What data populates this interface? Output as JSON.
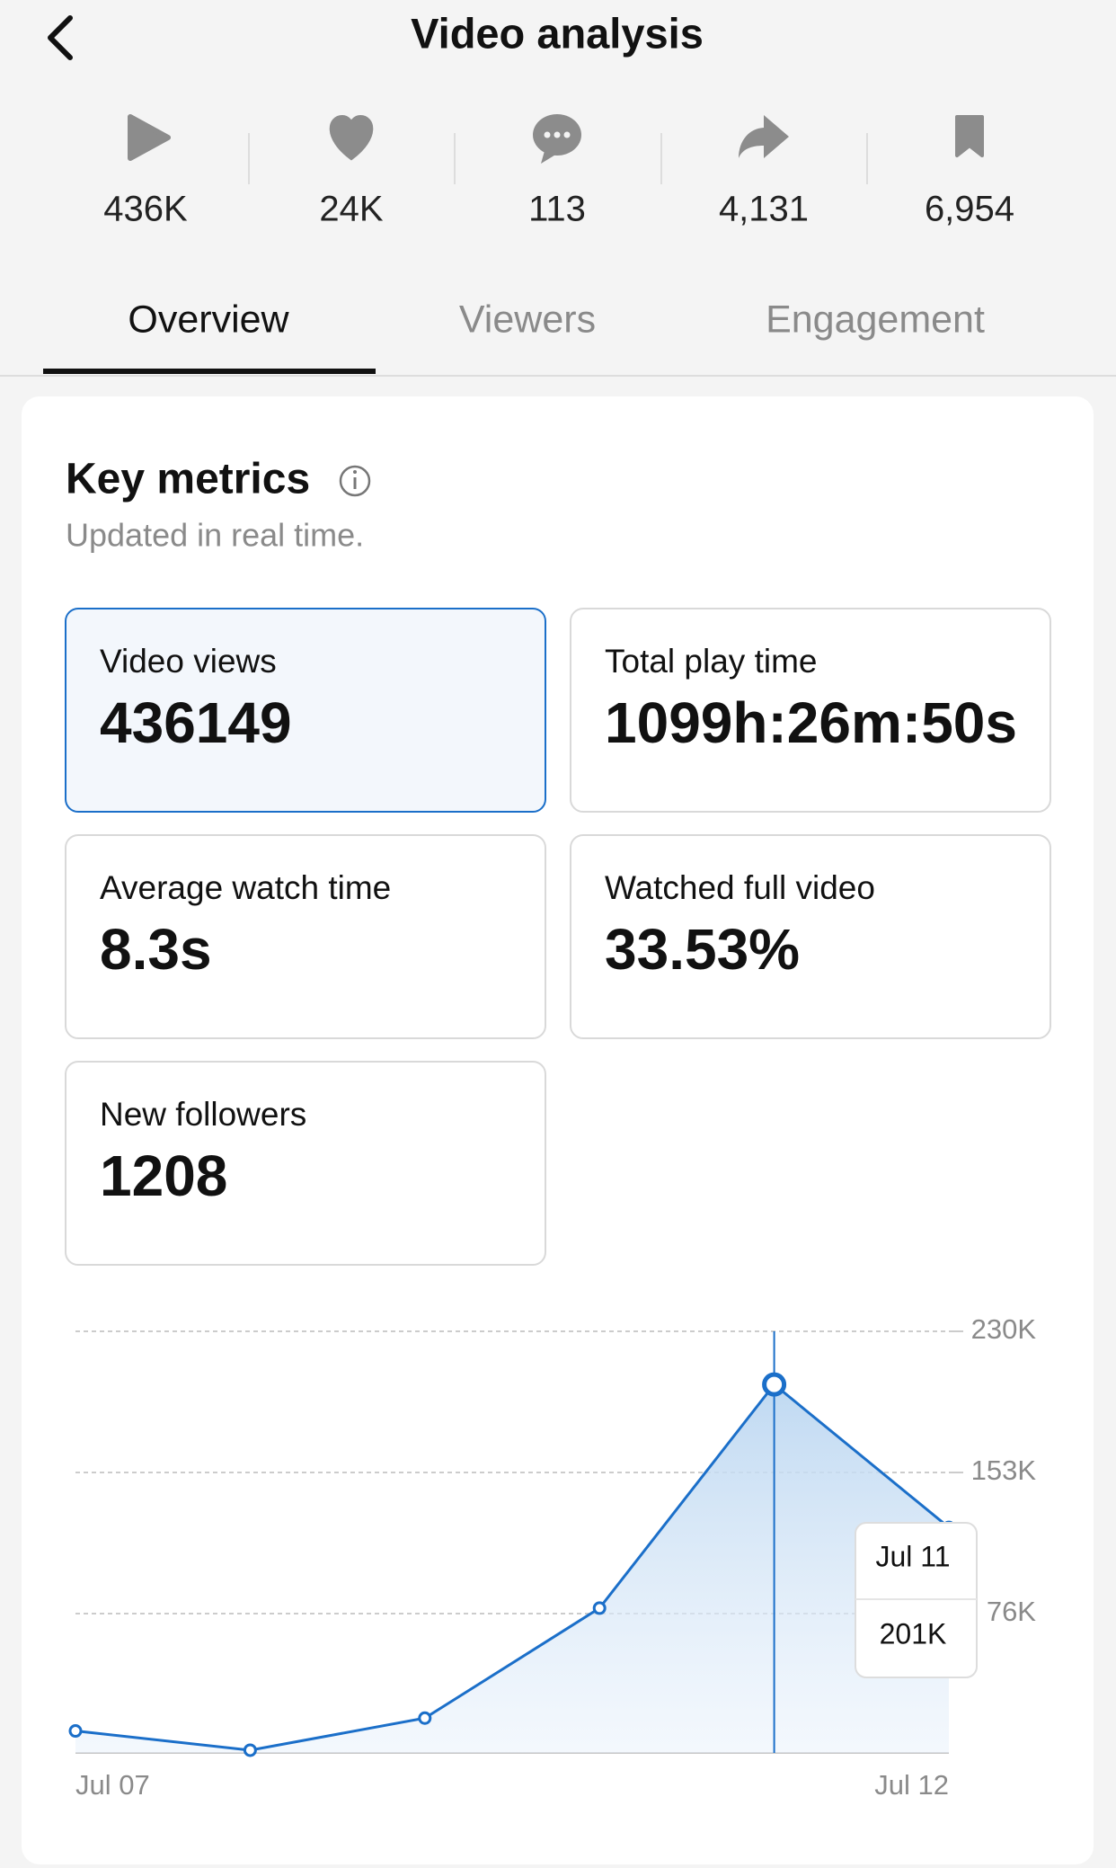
{
  "header": {
    "title": "Video analysis"
  },
  "stats": [
    "436K",
    "24K",
    "113",
    "4,131",
    "6,954"
  ],
  "tabs": [
    "Overview",
    "Viewers",
    "Engagement"
  ],
  "key_metrics": {
    "title": "Key metrics",
    "subtitle": "Updated in real time.",
    "cards": [
      {
        "label": "Video views",
        "value": "436149"
      },
      {
        "label": "Total play time",
        "value": "1099h:26m:50s"
      },
      {
        "label": "Average watch time",
        "value": "8.3s"
      },
      {
        "label": "Watched full video",
        "value": "33.53%"
      },
      {
        "label": "New followers",
        "value": "1208"
      }
    ]
  },
  "chart_data": {
    "type": "line",
    "categories": [
      "Jul 07",
      null,
      null,
      null,
      null,
      "Jul 12"
    ],
    "values": [
      12000,
      1500,
      19000,
      79000,
      201000,
      123000
    ],
    "value_labels": [
      null,
      null,
      null,
      null,
      "201K",
      null
    ],
    "tooltip_category": "Jul 11",
    "color": "#1b6fc9",
    "ylim": [
      0,
      230000
    ],
    "yticks": [
      {
        "value": 76000,
        "label": "76K"
      },
      {
        "value": 153000,
        "label": "153K"
      },
      {
        "value": 230000,
        "label": "230K"
      }
    ],
    "grid": true
  }
}
